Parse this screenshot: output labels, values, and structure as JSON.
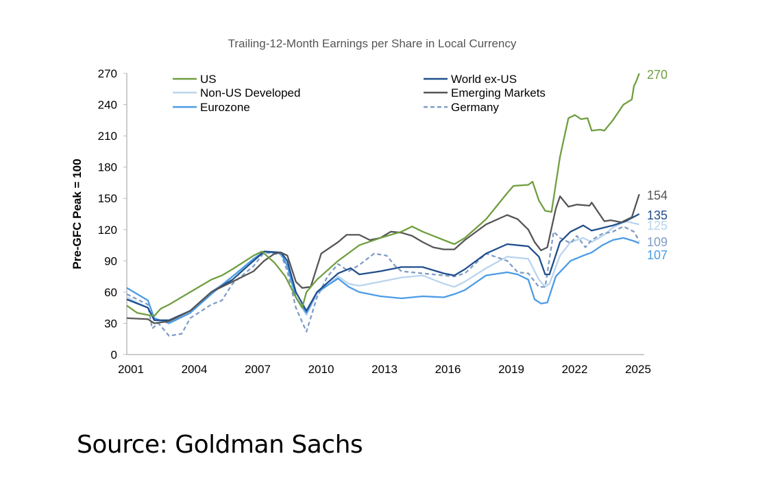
{
  "chart_data": {
    "type": "line",
    "title": "Trailing-12-Month Earnings per Share in Local Currency",
    "xlabel": "",
    "ylabel": "Pre-GFC Peak = 100",
    "xlim": [
      2001,
      2025.25
    ],
    "ylim": [
      0,
      270
    ],
    "x_ticks": [
      2001,
      2004,
      2007,
      2010,
      2013,
      2016,
      2019,
      2022,
      2025
    ],
    "y_ticks": [
      0,
      30,
      60,
      90,
      120,
      150,
      180,
      210,
      240,
      270
    ],
    "grid": false,
    "legend": "top",
    "series": [
      {
        "name": "US",
        "color": "#6f9e3f",
        "dashed": false,
        "end_label": "270",
        "x": [
          2001,
          2001.5,
          2002,
          2002.3,
          2002.6,
          2003,
          2004,
          2005,
          2005.5,
          2006,
          2007,
          2007.4,
          2008,
          2008.5,
          2009,
          2009.3,
          2009.5,
          2010,
          2011,
          2012,
          2013,
          2014,
          2014.5,
          2015,
          2016,
          2016.5,
          2017,
          2018,
          2019,
          2019.3,
          2020,
          2020.2,
          2020.5,
          2020.8,
          2021.1,
          2021.5,
          2021.9,
          2022.2,
          2022.5,
          2022.8,
          2023,
          2023.4,
          2023.6,
          2024,
          2024.5,
          2024.9,
          2025,
          2025.1,
          2025.25
        ],
        "y": [
          47,
          40,
          38,
          37,
          44,
          48,
          60,
          72,
          76,
          82,
          95,
          99,
          88,
          75,
          55,
          45,
          60,
          72,
          90,
          105,
          112,
          118,
          123,
          118,
          110,
          106,
          112,
          130,
          155,
          162,
          163,
          166,
          148,
          138,
          137,
          190,
          227,
          230,
          226,
          227,
          215,
          216,
          215,
          225,
          240,
          245,
          258,
          262,
          270
        ]
      },
      {
        "name": "World ex-US",
        "color": "#1f4e8c",
        "dashed": false,
        "end_label": "135",
        "x": [
          2001,
          2002,
          2002.3,
          2003,
          2004,
          2005,
          2006,
          2007,
          2007.5,
          2008.3,
          2008.6,
          2009,
          2009.5,
          2010,
          2011,
          2011.6,
          2012,
          2013,
          2014,
          2015,
          2016,
          2016.5,
          2017,
          2018,
          2019,
          2020,
          2020.5,
          2020.8,
          2021,
          2021.5,
          2022,
          2022.6,
          2023,
          2023.6,
          2024,
          2024.6,
          2025.25
        ],
        "y": [
          53,
          45,
          33,
          33,
          42,
          60,
          72,
          90,
          99,
          98,
          90,
          60,
          42,
          60,
          78,
          83,
          77,
          80,
          84,
          84,
          78,
          76,
          82,
          97,
          106,
          104,
          94,
          77,
          77,
          108,
          118,
          124,
          119,
          122,
          124,
          128,
          135
        ]
      },
      {
        "name": "Non-US Developed",
        "color": "#b9d4ee",
        "dashed": false,
        "end_label": "125",
        "x": [
          2001,
          2002,
          2002.3,
          2003,
          2004,
          2005,
          2006,
          2007,
          2007.5,
          2008.3,
          2008.6,
          2009,
          2009.5,
          2010,
          2011,
          2011.5,
          2012,
          2013,
          2014,
          2015,
          2016,
          2016.5,
          2017,
          2018,
          2019,
          2020,
          2020.5,
          2020.8,
          2021,
          2021.5,
          2022,
          2022.6,
          2023,
          2023.6,
          2024,
          2024.6,
          2025.25
        ],
        "y": [
          55,
          45,
          33,
          31,
          42,
          60,
          75,
          90,
          99,
          98,
          88,
          55,
          38,
          58,
          75,
          68,
          66,
          70,
          74,
          76,
          68,
          65,
          70,
          83,
          94,
          92,
          72,
          65,
          68,
          95,
          108,
          112,
          108,
          115,
          122,
          128,
          125
        ]
      },
      {
        "name": "Emerging Markets",
        "color": "#555555",
        "dashed": false,
        "end_label": "154",
        "x": [
          2001,
          2002,
          2002.3,
          2003,
          2004,
          2005,
          2006,
          2007,
          2007.5,
          2008,
          2008.3,
          2008.6,
          2009,
          2009.3,
          2009.7,
          2010.2,
          2011,
          2011.4,
          2012,
          2012.5,
          2013,
          2013.5,
          2014,
          2014.5,
          2015,
          2015.5,
          2016,
          2016.5,
          2017,
          2018,
          2019,
          2019.5,
          2020,
          2020.3,
          2020.6,
          2020.9,
          2021.3,
          2021.5,
          2021.9,
          2022.3,
          2022.9,
          2023,
          2023.6,
          2023.9,
          2024.4,
          2024.9,
          2025.25
        ],
        "y": [
          35,
          34,
          30,
          32,
          42,
          60,
          70,
          80,
          90,
          97,
          98,
          95,
          70,
          64,
          65,
          97,
          108,
          115,
          115,
          110,
          112,
          118,
          117,
          114,
          108,
          103,
          101,
          101,
          110,
          125,
          134,
          130,
          120,
          108,
          100,
          103,
          140,
          152,
          142,
          144,
          143,
          146,
          128,
          129,
          127,
          132,
          154
        ]
      },
      {
        "name": "Eurozone",
        "color": "#4a9be6",
        "dashed": false,
        "end_label": "107",
        "x": [
          2001,
          2002,
          2002.3,
          2003,
          2004,
          2005,
          2006,
          2007,
          2007.5,
          2008.3,
          2008.6,
          2009,
          2009.5,
          2010,
          2011,
          2011.5,
          2012,
          2013,
          2014,
          2015,
          2016,
          2016.5,
          2017,
          2018,
          2019,
          2019.5,
          2020,
          2020.3,
          2020.6,
          2020.9,
          2021.3,
          2022,
          2022.6,
          2023,
          2023.5,
          2024,
          2024.5,
          2025,
          2025.25
        ],
        "y": [
          64,
          52,
          35,
          30,
          40,
          58,
          75,
          92,
          99,
          97,
          85,
          55,
          40,
          60,
          73,
          65,
          60,
          56,
          54,
          56,
          55,
          58,
          62,
          76,
          79,
          77,
          72,
          53,
          49,
          50,
          75,
          90,
          95,
          98,
          105,
          110,
          112,
          109,
          107
        ]
      },
      {
        "name": "Germany",
        "color": "#7f9cc6",
        "dashed": true,
        "end_label": "109",
        "x": [
          2001,
          2002,
          2002.2,
          2002.5,
          2003,
          2003.6,
          2004,
          2005,
          2005.5,
          2006,
          2007,
          2007.5,
          2008.3,
          2008.6,
          2009,
          2009.5,
          2010,
          2010.5,
          2011,
          2011.5,
          2012,
          2012.7,
          2013.3,
          2013.7,
          2014,
          2015,
          2016,
          2016.5,
          2017,
          2018,
          2019,
          2019.5,
          2020,
          2020.5,
          2020.8,
          2021.2,
          2021.5,
          2022,
          2022.3,
          2022.7,
          2023,
          2023.5,
          2024,
          2024.5,
          2025,
          2025.25
        ],
        "y": [
          58,
          48,
          25,
          30,
          18,
          20,
          35,
          48,
          52,
          68,
          85,
          98,
          96,
          80,
          45,
          22,
          55,
          75,
          87,
          80,
          86,
          97,
          95,
          85,
          80,
          78,
          76,
          75,
          78,
          97,
          90,
          79,
          78,
          65,
          65,
          118,
          112,
          107,
          114,
          103,
          110,
          116,
          118,
          123,
          118,
          109
        ]
      }
    ]
  },
  "source": "Source: Goldman Sachs"
}
